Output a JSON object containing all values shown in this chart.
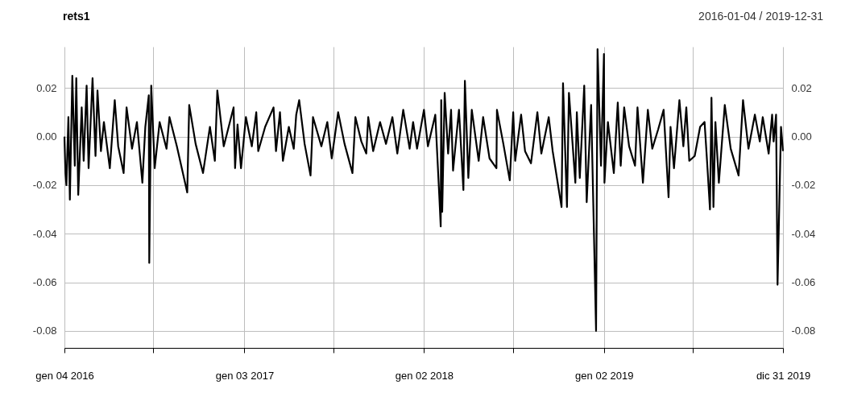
{
  "chart_data": {
    "type": "line",
    "title": "rets1",
    "subtitle": "2016-01-04 / 2019-12-31",
    "xlim": [
      "2016-01-04",
      "2019-12-31"
    ],
    "xticks": [
      {
        "value": "2016-01-04",
        "label": "gen 04 2016"
      },
      {
        "value": "2016-07-01",
        "label": null
      },
      {
        "value": "2017-01-03",
        "label": "gen 03 2017"
      },
      {
        "value": "2017-07-03",
        "label": null
      },
      {
        "value": "2018-01-02",
        "label": "gen 02 2018"
      },
      {
        "value": "2018-07-02",
        "label": null
      },
      {
        "value": "2019-01-02",
        "label": "gen 02 2019"
      },
      {
        "value": "2019-07-01",
        "label": null
      },
      {
        "value": "2019-12-31",
        "label": "dic 31 2019"
      }
    ],
    "ylim": [
      -0.087,
      0.037
    ],
    "yticks": [
      0.02,
      {
        "value": 0,
        "label": "0.00"
      },
      -0.02,
      -0.04,
      -0.06,
      -0.08
    ],
    "y2lim": [
      -0.087,
      0.037
    ],
    "y2ticks": [
      0.02,
      {
        "value": 0,
        "label": "0.00"
      },
      -0.02,
      -0.04,
      -0.06,
      -0.08
    ],
    "grid": true,
    "marker": "none",
    "line_style": "solid",
    "series": [
      {
        "color": "#000000",
        "x": [
          "2016-01-04",
          "2016-01-06",
          "2016-01-08",
          "2016-01-12",
          "2016-01-15",
          "2016-01-20",
          "2016-01-25",
          "2016-01-28",
          "2016-02-01",
          "2016-02-08",
          "2016-02-12",
          "2016-02-18",
          "2016-02-22",
          "2016-03-01",
          "2016-03-07",
          "2016-03-11",
          "2016-03-18",
          "2016-03-24",
          "2016-04-05",
          "2016-04-15",
          "2016-04-22",
          "2016-05-03",
          "2016-05-09",
          "2016-05-20",
          "2016-05-30",
          "2016-06-10",
          "2016-06-16",
          "2016-06-23",
          "2016-06-24",
          "2016-06-28",
          "2016-07-05",
          "2016-07-15",
          "2016-07-29",
          "2016-08-04",
          "2016-08-19",
          "2016-09-09",
          "2016-09-13",
          "2016-09-26",
          "2016-10-11",
          "2016-10-25",
          "2016-11-04",
          "2016-11-09",
          "2016-11-22",
          "2016-12-12",
          "2016-12-15",
          "2016-12-20",
          "2016-12-27",
          "2017-01-06",
          "2017-01-18",
          "2017-01-27",
          "2017-01-31",
          "2017-02-14",
          "2017-03-03",
          "2017-03-08",
          "2017-03-16",
          "2017-03-22",
          "2017-04-03",
          "2017-04-13",
          "2017-04-18",
          "2017-04-24",
          "2017-05-05",
          "2017-05-17",
          "2017-05-22",
          "2017-06-08",
          "2017-06-20",
          "2017-06-29",
          "2017-07-12",
          "2017-07-25",
          "2017-08-10",
          "2017-08-16",
          "2017-08-28",
          "2017-09-07",
          "2017-09-11",
          "2017-09-21",
          "2017-10-05",
          "2017-10-17",
          "2017-10-30",
          "2017-11-09",
          "2017-11-21",
          "2017-12-04",
          "2017-12-11",
          "2017-12-19",
          "2018-01-02",
          "2018-01-10",
          "2018-01-25",
          "2018-02-02",
          "2018-02-05",
          "2018-02-06",
          "2018-02-08",
          "2018-02-13",
          "2018-02-20",
          "2018-02-26",
          "2018-03-02",
          "2018-03-14",
          "2018-03-23",
          "2018-03-26",
          "2018-04-02",
          "2018-04-09",
          "2018-04-23",
          "2018-05-02",
          "2018-05-15",
          "2018-05-29",
          "2018-05-30",
          "2018-06-12",
          "2018-06-25",
          "2018-07-02",
          "2018-07-06",
          "2018-07-18",
          "2018-07-26",
          "2018-08-07",
          "2018-08-20",
          "2018-08-28",
          "2018-09-12",
          "2018-09-20",
          "2018-10-08",
          "2018-10-11",
          "2018-10-19",
          "2018-10-23",
          "2018-11-05",
          "2018-11-08",
          "2018-11-14",
          "2018-11-23",
          "2018-11-28",
          "2018-12-07",
          "2018-12-17",
          "2018-12-20",
          "2018-12-27",
          "2019-01-02",
          "2019-01-03",
          "2019-01-10",
          "2019-01-22",
          "2019-01-30",
          "2019-02-05",
          "2019-02-12",
          "2019-02-22",
          "2019-03-06",
          "2019-03-11",
          "2019-03-22",
          "2019-04-01",
          "2019-04-10",
          "2019-04-22",
          "2019-05-03",
          "2019-05-13",
          "2019-05-17",
          "2019-05-24",
          "2019-06-04",
          "2019-06-12",
          "2019-06-18",
          "2019-06-24",
          "2019-07-05",
          "2019-07-16",
          "2019-07-25",
          "2019-07-30",
          "2019-08-05",
          "2019-08-08",
          "2019-08-12",
          "2019-08-16",
          "2019-08-23",
          "2019-09-04",
          "2019-09-16",
          "2019-10-02",
          "2019-10-11",
          "2019-10-22",
          "2019-11-04",
          "2019-11-14",
          "2019-11-20",
          "2019-12-02",
          "2019-12-09",
          "2019-12-12",
          "2019-12-17",
          "2019-12-20",
          "2019-12-27",
          "2019-12-31"
        ],
        "values": [
          0.0,
          -0.015,
          -0.02,
          0.008,
          -0.026,
          0.025,
          -0.012,
          0.024,
          -0.024,
          0.012,
          -0.01,
          0.021,
          -0.013,
          0.024,
          -0.008,
          0.019,
          -0.006,
          0.006,
          -0.013,
          0.015,
          -0.004,
          -0.015,
          0.012,
          -0.005,
          0.006,
          -0.019,
          0.004,
          0.017,
          -0.052,
          0.021,
          -0.013,
          0.006,
          -0.005,
          0.008,
          -0.004,
          -0.023,
          0.013,
          -0.003,
          -0.015,
          0.004,
          -0.01,
          0.019,
          -0.004,
          0.012,
          -0.013,
          0.005,
          -0.013,
          0.008,
          -0.004,
          0.01,
          -0.006,
          0.004,
          0.012,
          -0.006,
          0.01,
          -0.01,
          0.004,
          -0.005,
          0.009,
          0.015,
          -0.003,
          -0.016,
          0.008,
          -0.004,
          0.006,
          -0.009,
          0.01,
          -0.003,
          -0.015,
          0.008,
          -0.002,
          -0.007,
          0.008,
          -0.006,
          0.006,
          -0.003,
          0.008,
          -0.007,
          0.011,
          -0.005,
          0.006,
          -0.005,
          0.011,
          -0.004,
          0.009,
          -0.024,
          -0.037,
          0.015,
          -0.031,
          0.018,
          -0.007,
          0.011,
          -0.014,
          0.011,
          -0.022,
          0.023,
          -0.017,
          0.011,
          -0.01,
          0.008,
          -0.009,
          -0.013,
          0.011,
          -0.003,
          -0.018,
          0.01,
          -0.01,
          0.009,
          -0.006,
          -0.011,
          0.01,
          -0.007,
          0.008,
          -0.006,
          -0.029,
          0.022,
          -0.029,
          0.018,
          -0.019,
          0.01,
          -0.017,
          0.021,
          -0.027,
          0.013,
          -0.08,
          0.036,
          -0.012,
          0.034,
          -0.019,
          0.006,
          -0.015,
          0.014,
          -0.012,
          0.012,
          -0.004,
          -0.012,
          0.012,
          -0.019,
          0.011,
          -0.005,
          0.003,
          0.011,
          -0.025,
          0.004,
          -0.013,
          0.015,
          -0.004,
          0.012,
          -0.01,
          -0.008,
          0.004,
          0.006,
          -0.01,
          -0.03,
          0.016,
          -0.029,
          0.006,
          -0.019,
          0.013,
          -0.005,
          -0.016,
          0.015,
          -0.005,
          0.009,
          -0.002,
          0.008,
          -0.007,
          0.009,
          -0.002,
          0.009,
          -0.061,
          0.004,
          -0.006
        ]
      }
    ]
  }
}
